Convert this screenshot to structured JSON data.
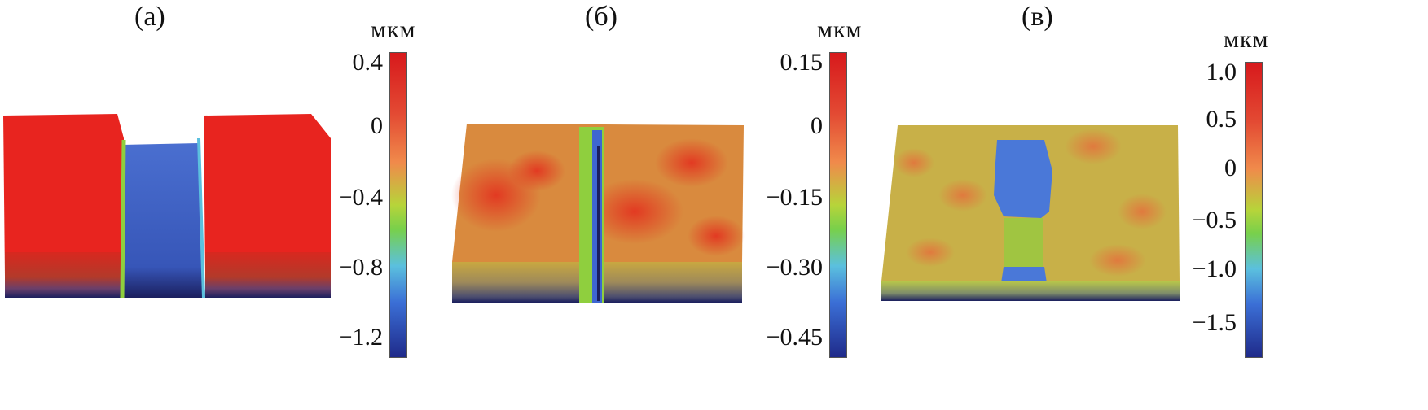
{
  "panels": [
    {
      "label": "(а)",
      "unit": "мкм",
      "ticks": [
        "0.4",
        "0",
        "−0.4",
        "−0.8",
        "−1.2"
      ]
    },
    {
      "label": "(б)",
      "unit": "мкм",
      "ticks": [
        "0.15",
        "0",
        "−0.15",
        "−0.30",
        "−0.45"
      ]
    },
    {
      "label": "(в)",
      "unit": "мкм",
      "ticks": [
        "1.0",
        "0.5",
        "0",
        "−0.5",
        "−1.0",
        "−1.5"
      ]
    }
  ],
  "colors": {
    "high": "#e8241f",
    "mid": "#c9a840",
    "zero": "#8fcf3e",
    "low": "#3e66d0",
    "base": "#1b1f5e"
  }
}
